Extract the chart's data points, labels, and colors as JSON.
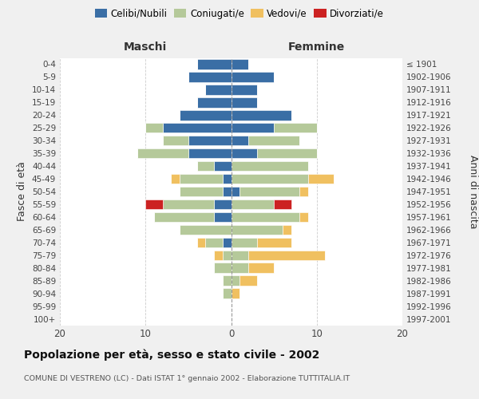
{
  "age_groups": [
    "0-4",
    "5-9",
    "10-14",
    "15-19",
    "20-24",
    "25-29",
    "30-34",
    "35-39",
    "40-44",
    "45-49",
    "50-54",
    "55-59",
    "60-64",
    "65-69",
    "70-74",
    "75-79",
    "80-84",
    "85-89",
    "90-94",
    "95-99",
    "100+"
  ],
  "birth_years": [
    "1997-2001",
    "1992-1996",
    "1987-1991",
    "1982-1986",
    "1977-1981",
    "1972-1976",
    "1967-1971",
    "1962-1966",
    "1957-1961",
    "1952-1956",
    "1947-1951",
    "1942-1946",
    "1937-1941",
    "1932-1936",
    "1927-1931",
    "1922-1926",
    "1917-1921",
    "1912-1916",
    "1907-1911",
    "1902-1906",
    "≤ 1901"
  ],
  "maschi_celibi": [
    4,
    5,
    3,
    4,
    6,
    8,
    5,
    5,
    2,
    1,
    1,
    2,
    2,
    0,
    1,
    0,
    0,
    0,
    0,
    0,
    0
  ],
  "maschi_coniugati": [
    0,
    0,
    0,
    0,
    0,
    2,
    3,
    6,
    2,
    5,
    5,
    6,
    7,
    6,
    2,
    1,
    2,
    1,
    1,
    0,
    0
  ],
  "maschi_vedovi": [
    0,
    0,
    0,
    0,
    0,
    0,
    0,
    0,
    0,
    1,
    0,
    0,
    0,
    0,
    1,
    1,
    0,
    0,
    0,
    0,
    0
  ],
  "maschi_divorziati": [
    0,
    0,
    0,
    0,
    0,
    0,
    0,
    0,
    0,
    0,
    0,
    2,
    0,
    0,
    0,
    0,
    0,
    0,
    0,
    0,
    0
  ],
  "femmine_nubili": [
    2,
    5,
    3,
    3,
    7,
    5,
    2,
    3,
    0,
    0,
    1,
    0,
    0,
    0,
    0,
    0,
    0,
    0,
    0,
    0,
    0
  ],
  "femmine_coniugate": [
    0,
    0,
    0,
    0,
    0,
    5,
    6,
    7,
    9,
    9,
    7,
    5,
    8,
    6,
    3,
    2,
    2,
    1,
    0,
    0,
    0
  ],
  "femmine_vedove": [
    0,
    0,
    0,
    0,
    0,
    0,
    0,
    0,
    0,
    3,
    1,
    0,
    1,
    1,
    4,
    9,
    3,
    2,
    1,
    0,
    0
  ],
  "femmine_divorziate": [
    0,
    0,
    0,
    0,
    0,
    0,
    0,
    0,
    0,
    0,
    0,
    2,
    0,
    0,
    0,
    0,
    0,
    0,
    0,
    0,
    0
  ],
  "color_celibi": "#3a6ea5",
  "color_coniugati": "#b5c99a",
  "color_vedovi": "#f0c060",
  "color_divorziati": "#cc2222",
  "legend_labels": [
    "Celibi/Nubili",
    "Coniugati/e",
    "Vedovi/e",
    "Divorziati/e"
  ],
  "xlim": 20,
  "title": "Popolazione per età, sesso e stato civile - 2002",
  "subtitle": "COMUNE DI VESTRENO (LC) - Dati ISTAT 1° gennaio 2002 - Elaborazione TUTTITALIA.IT",
  "ylabel_left": "Fasce di età",
  "ylabel_right": "Anni di nascita",
  "label_maschi": "Maschi",
  "label_femmine": "Femmine",
  "bg_color": "#f0f0f0",
  "plot_bg_color": "#ffffff"
}
